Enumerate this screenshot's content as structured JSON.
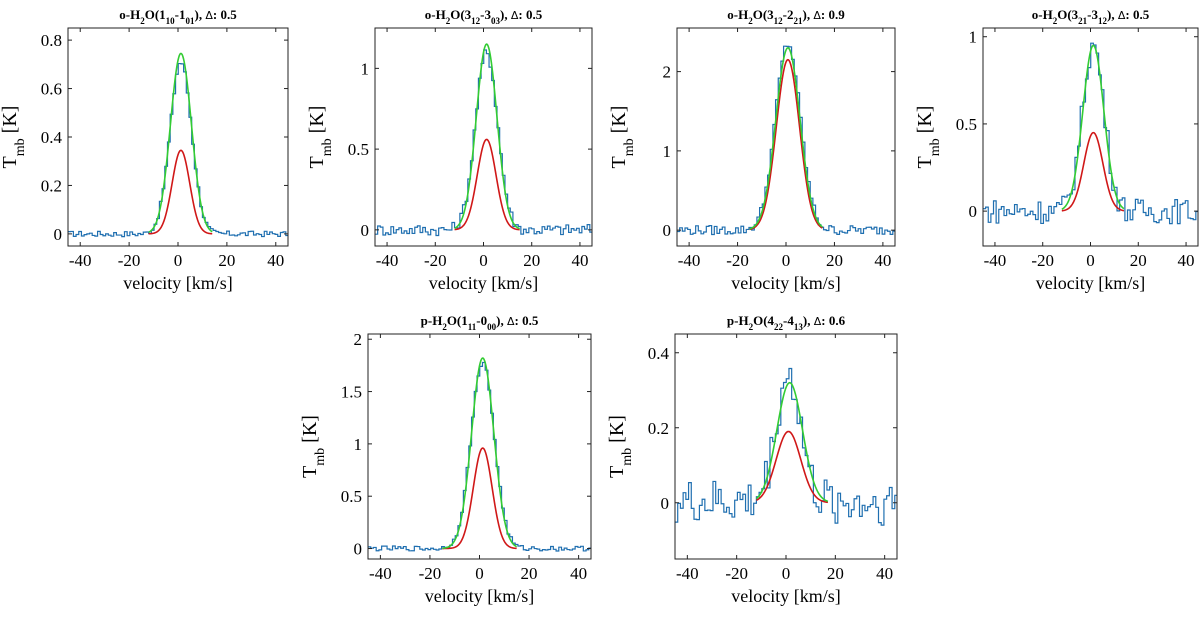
{
  "colors": {
    "observed": "#1f6fb0",
    "total_fit": "#33cc33",
    "component_fit": "#d01818"
  },
  "chart_data": [
    {
      "type": "line",
      "title": "o-H2O(110-101), Δ: 0.5",
      "title_parts": [
        [
          "o-H",
          "n"
        ],
        [
          "2",
          "sub"
        ],
        [
          "O(1",
          "n"
        ],
        [
          "10",
          "sub"
        ],
        [
          "-1",
          "n"
        ],
        [
          "01",
          "sub"
        ],
        [
          "), ",
          "n"
        ],
        [
          "Δ",
          "sym"
        ],
        [
          ": 0.5",
          "n"
        ]
      ],
      "xlabel": "velocity [km/s]",
      "ylabel": "Tmb [K]",
      "xlim": [
        -45,
        45
      ],
      "ylim": [
        -0.05,
        0.85
      ],
      "xticks": [
        -40,
        -20,
        0,
        20,
        40
      ],
      "yticks": [
        0,
        0.2,
        0.4,
        0.6,
        0.8
      ],
      "ytick_labels": [
        "0",
        "0.2",
        "0.4",
        "0.6",
        "0.8"
      ],
      "series": [
        {
          "role": "observed",
          "center": 1.2,
          "peak": 0.71,
          "width": 4.4,
          "noise": 0.01
        },
        {
          "role": "total_fit",
          "center": 1.2,
          "peak": 0.745,
          "width": 4.3,
          "range": [
            -12,
            14
          ]
        },
        {
          "role": "component_fit",
          "center": 1.2,
          "peak": 0.345,
          "width": 3.6,
          "range": [
            -12,
            14
          ]
        }
      ]
    },
    {
      "type": "line",
      "title": "o-H2O(312-303), Δ: 0.5",
      "title_parts": [
        [
          "o-H",
          "n"
        ],
        [
          "2",
          "sub"
        ],
        [
          "O(3",
          "n"
        ],
        [
          "12",
          "sub"
        ],
        [
          "-3",
          "n"
        ],
        [
          "03",
          "sub"
        ],
        [
          "), ",
          "n"
        ],
        [
          "Δ",
          "sym"
        ],
        [
          ": 0.5",
          "n"
        ]
      ],
      "xlabel": "velocity [km/s]",
      "ylabel": "Tmb [K]",
      "xlim": [
        -45,
        45
      ],
      "ylim": [
        -0.1,
        1.25
      ],
      "xticks": [
        -40,
        -20,
        0,
        20,
        40
      ],
      "yticks": [
        0,
        0.5,
        1
      ],
      "ytick_labels": [
        "0",
        "0.5",
        "1"
      ],
      "series": [
        {
          "role": "observed",
          "center": 1.3,
          "peak": 1.1,
          "width": 4.6,
          "noise": 0.03
        },
        {
          "role": "total_fit",
          "center": 1.3,
          "peak": 1.15,
          "width": 4.3,
          "range": [
            -12,
            15
          ]
        },
        {
          "role": "component_fit",
          "center": 1.3,
          "peak": 0.56,
          "width": 3.9,
          "range": [
            -12,
            15
          ]
        }
      ]
    },
    {
      "type": "line",
      "title": "o-H2O(312-221), Δ: 0.9",
      "title_parts": [
        [
          "o-H",
          "n"
        ],
        [
          "2",
          "sub"
        ],
        [
          "O(3",
          "n"
        ],
        [
          "12",
          "sub"
        ],
        [
          "-2",
          "n"
        ],
        [
          "21",
          "sub"
        ],
        [
          "), ",
          "n"
        ],
        [
          "Δ",
          "sym"
        ],
        [
          ": 0.9",
          "n"
        ]
      ],
      "xlabel": "velocity [km/s]",
      "ylabel": "Tmb [K]",
      "xlim": [
        -45,
        45
      ],
      "ylim": [
        -0.2,
        2.55
      ],
      "xticks": [
        -40,
        -20,
        0,
        20,
        40
      ],
      "yticks": [
        0,
        1,
        2
      ],
      "ytick_labels": [
        "0",
        "1",
        "2"
      ],
      "series": [
        {
          "role": "observed",
          "center": 0.8,
          "peak": 2.35,
          "width": 5.2,
          "noise": 0.05
        },
        {
          "role": "total_fit",
          "center": 0.8,
          "peak": 2.3,
          "width": 5.0,
          "range": [
            -15,
            15
          ]
        },
        {
          "role": "component_fit",
          "center": 0.8,
          "peak": 2.15,
          "width": 4.8,
          "range": [
            -15,
            15
          ]
        }
      ]
    },
    {
      "type": "line",
      "title": "o-H2O(321-312), Δ: 0.5",
      "title_parts": [
        [
          "o-H",
          "n"
        ],
        [
          "2",
          "sub"
        ],
        [
          "O(3",
          "n"
        ],
        [
          "21",
          "sub"
        ],
        [
          "-3",
          "n"
        ],
        [
          "12",
          "sub"
        ],
        [
          "), ",
          "n"
        ],
        [
          "Δ",
          "sym"
        ],
        [
          ": 0.5",
          "n"
        ]
      ],
      "xlabel": "velocity [km/s]",
      "ylabel": "Tmb [K]",
      "xlim": [
        -45,
        45
      ],
      "ylim": [
        -0.2,
        1.05
      ],
      "xticks": [
        -40,
        -20,
        0,
        20,
        40
      ],
      "yticks": [
        0,
        0.5,
        1
      ],
      "ytick_labels": [
        "0",
        "0.5",
        "1"
      ],
      "series": [
        {
          "role": "observed",
          "center": 1.2,
          "peak": 0.95,
          "width": 4.6,
          "noise": 0.06
        },
        {
          "role": "total_fit",
          "center": 1.2,
          "peak": 0.95,
          "width": 4.4,
          "range": [
            -12,
            14
          ]
        },
        {
          "role": "component_fit",
          "center": 1.2,
          "peak": 0.45,
          "width": 4.0,
          "range": [
            -12,
            14
          ]
        }
      ]
    },
    {
      "type": "line",
      "title": "p-H2O(111-000), Δ: 0.5",
      "title_parts": [
        [
          "p-H",
          "n"
        ],
        [
          "2",
          "sub"
        ],
        [
          "O(1",
          "n"
        ],
        [
          "11",
          "sub"
        ],
        [
          "-0",
          "n"
        ],
        [
          "00",
          "sub"
        ],
        [
          "), ",
          "n"
        ],
        [
          "Δ",
          "sym"
        ],
        [
          ": 0.5",
          "n"
        ]
      ],
      "xlabel": "velocity [km/s]",
      "ylabel": "Tmb [K]",
      "xlim": [
        -45,
        45
      ],
      "ylim": [
        -0.1,
        2.05
      ],
      "xticks": [
        -40,
        -20,
        0,
        20,
        40
      ],
      "yticks": [
        0,
        0.5,
        1,
        1.5,
        2
      ],
      "ytick_labels": [
        "0",
        "0.5",
        "1",
        "1.5",
        "2"
      ],
      "series": [
        {
          "role": "observed",
          "center": 1.3,
          "peak": 1.78,
          "width": 4.7,
          "noise": 0.02
        },
        {
          "role": "total_fit",
          "center": 1.3,
          "peak": 1.82,
          "width": 4.5,
          "range": [
            -15,
            15
          ]
        },
        {
          "role": "component_fit",
          "center": 1.3,
          "peak": 0.96,
          "width": 3.8,
          "range": [
            -15,
            15
          ]
        }
      ]
    },
    {
      "type": "line",
      "title": "p-H2O(422-413), Δ: 0.6",
      "title_parts": [
        [
          "p-H",
          "n"
        ],
        [
          "2",
          "sub"
        ],
        [
          "O(4",
          "n"
        ],
        [
          "22",
          "sub"
        ],
        [
          "-4",
          "n"
        ],
        [
          "13",
          "sub"
        ],
        [
          "), ",
          "n"
        ],
        [
          "Δ",
          "sym"
        ],
        [
          ": 0.6",
          "n"
        ]
      ],
      "xlabel": "velocity [km/s]",
      "ylabel": "Tmb [K]",
      "xlim": [
        -45,
        45
      ],
      "ylim": [
        -0.15,
        0.45
      ],
      "xticks": [
        -40,
        -20,
        0,
        20,
        40
      ],
      "yticks": [
        0,
        0.2,
        0.4
      ],
      "ytick_labels": [
        "0",
        "0.2",
        "0.4"
      ],
      "series": [
        {
          "role": "observed",
          "center": 1.0,
          "peak": 0.34,
          "width": 5.0,
          "noise": 0.05
        },
        {
          "role": "total_fit",
          "center": 1.5,
          "peak": 0.32,
          "width": 5.2,
          "range": [
            -12,
            17
          ]
        },
        {
          "role": "component_fit",
          "center": 1.0,
          "peak": 0.19,
          "width": 5.0,
          "range": [
            -12,
            17
          ]
        }
      ]
    }
  ]
}
